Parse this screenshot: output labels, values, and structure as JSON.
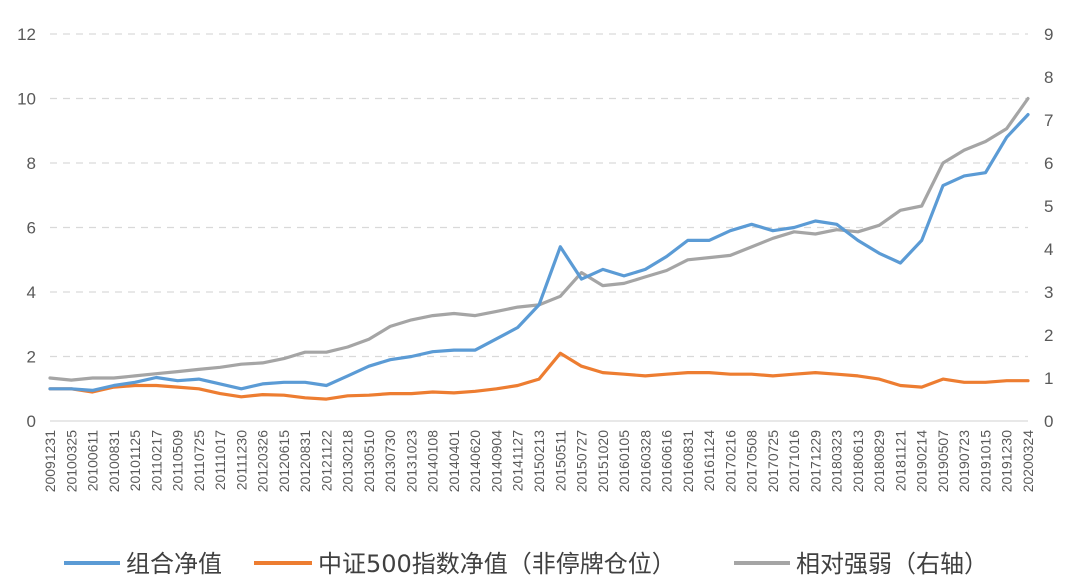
{
  "chart_data": {
    "type": "line",
    "title": "",
    "xlabel": "",
    "ylabel": "",
    "y2label": "",
    "ylim": [
      0,
      12
    ],
    "y2lim": [
      0,
      9
    ],
    "yticks": [
      0,
      2,
      4,
      6,
      8,
      10,
      12
    ],
    "y2ticks": [
      0,
      1,
      2,
      3,
      4,
      5,
      6,
      7,
      8,
      9
    ],
    "grid": true,
    "legend_position": "bottom",
    "categories": [
      "20091231",
      "20100325",
      "20100611",
      "20100831",
      "20101125",
      "20110217",
      "20110509",
      "20110725",
      "20111017",
      "20111230",
      "20120326",
      "20120615",
      "20120831",
      "20121122",
      "20130218",
      "20130510",
      "20130730",
      "20131023",
      "20140108",
      "20140401",
      "20140620",
      "20140904",
      "20141127",
      "20150213",
      "20150511",
      "20150727",
      "20151020",
      "20160105",
      "20160328",
      "20160616",
      "20160831",
      "20161124",
      "20170216",
      "20170508",
      "20170725",
      "20171016",
      "20171229",
      "20180323",
      "20180613",
      "20180829",
      "20181121",
      "20190214",
      "20190507",
      "20190723",
      "20191015",
      "20191230",
      "20200324"
    ],
    "series": [
      {
        "name": "组合净值",
        "axis": "left",
        "color": "#5b9bd5",
        "values": [
          1.0,
          1.0,
          0.95,
          1.1,
          1.2,
          1.35,
          1.25,
          1.3,
          1.15,
          1.0,
          1.15,
          1.2,
          1.2,
          1.1,
          1.4,
          1.7,
          1.9,
          2.0,
          2.15,
          2.2,
          2.2,
          2.55,
          2.9,
          3.6,
          5.4,
          4.4,
          4.7,
          4.5,
          4.7,
          5.1,
          5.6,
          5.6,
          5.9,
          6.1,
          5.9,
          6.0,
          6.2,
          6.1,
          5.6,
          5.2,
          4.9,
          5.6,
          7.3,
          7.6,
          7.7,
          8.8,
          9.5
        ]
      },
      {
        "name": "中证500指数净值（非停牌仓位）",
        "axis": "left",
        "color": "#ed7d31",
        "values": [
          1.0,
          1.0,
          0.9,
          1.05,
          1.1,
          1.1,
          1.05,
          1.0,
          0.85,
          0.75,
          0.82,
          0.8,
          0.72,
          0.68,
          0.78,
          0.8,
          0.85,
          0.85,
          0.9,
          0.87,
          0.92,
          1.0,
          1.1,
          1.3,
          2.1,
          1.7,
          1.5,
          1.45,
          1.4,
          1.45,
          1.5,
          1.5,
          1.45,
          1.45,
          1.4,
          1.45,
          1.5,
          1.45,
          1.4,
          1.3,
          1.1,
          1.05,
          1.3,
          1.2,
          1.2,
          1.25,
          1.25
        ]
      },
      {
        "name": "相对强弱（右轴）",
        "axis": "right",
        "color": "#a5a5a5",
        "values": [
          1.0,
          0.95,
          1.0,
          1.0,
          1.05,
          1.1,
          1.15,
          1.2,
          1.25,
          1.32,
          1.35,
          1.45,
          1.6,
          1.6,
          1.72,
          1.9,
          2.2,
          2.35,
          2.45,
          2.5,
          2.45,
          2.55,
          2.65,
          2.7,
          2.9,
          3.45,
          3.15,
          3.2,
          3.35,
          3.5,
          3.75,
          3.8,
          3.85,
          4.05,
          4.25,
          4.4,
          4.35,
          4.45,
          4.4,
          4.55,
          4.9,
          5.0,
          6.0,
          6.3,
          6.5,
          6.8,
          7.5
        ]
      }
    ]
  }
}
